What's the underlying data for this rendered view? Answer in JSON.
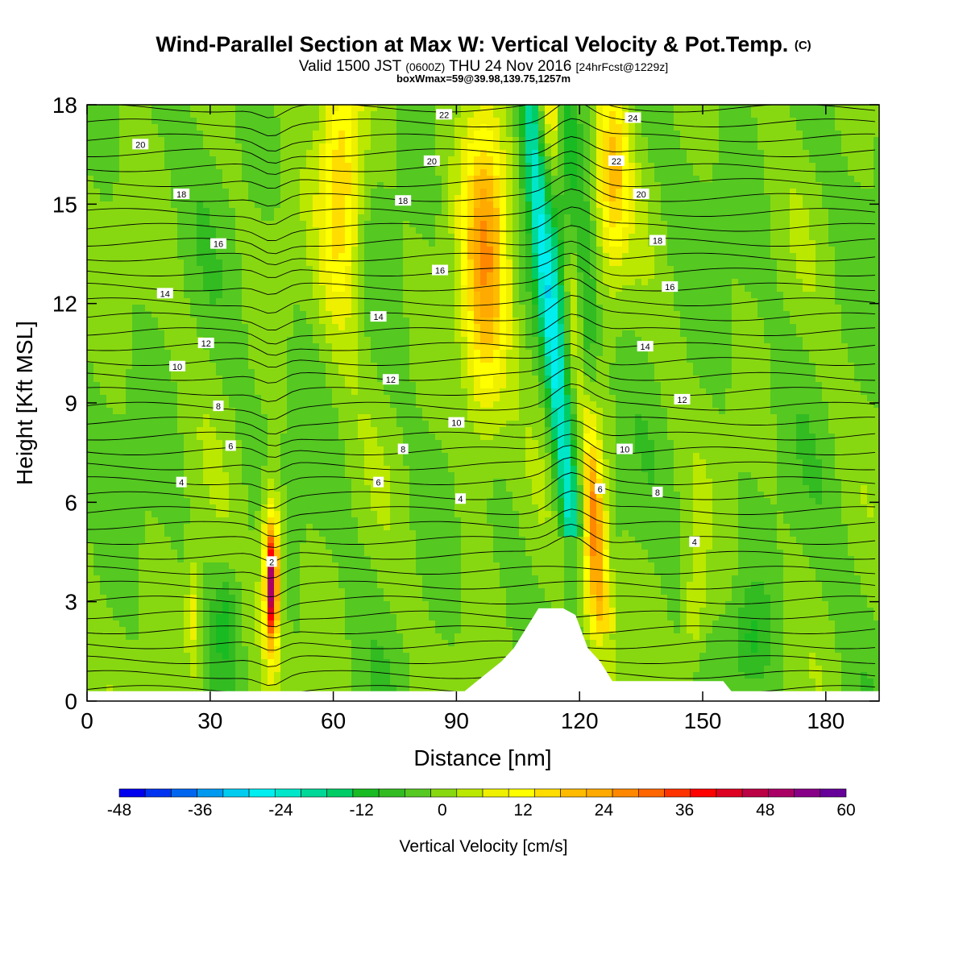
{
  "header": {
    "title": "Wind-Parallel Section at Max W: Vertical Velocity & Pot.Temp.",
    "copyright": "(C)",
    "valid_prefix": "Valid 1500 JST",
    "valid_utc": "(0600Z)",
    "valid_date": "THU 24 Nov 2016",
    "forecast": "[24hrFcst@1229z]",
    "box_max": "boxWmax=59@39.98,139.75,1257m"
  },
  "colorbar": {
    "label": "Vertical Velocity [cm/s]",
    "tick_labels": [
      "-48",
      "-36",
      "-24",
      "-12",
      "0",
      "12",
      "24",
      "36",
      "48",
      "60"
    ],
    "colors": [
      "#0000ee",
      "#0033f0",
      "#0066f0",
      "#0099f0",
      "#00ccf0",
      "#00eef0",
      "#00e6c8",
      "#00d898",
      "#00cc66",
      "#19bb22",
      "#33bb22",
      "#55c822",
      "#88d811",
      "#bbe800",
      "#eef000",
      "#ffff00",
      "#ffdd00",
      "#ffbb00",
      "#ffaa00",
      "#ff8800",
      "#ff6600",
      "#ff3300",
      "#ff0000",
      "#dd0022",
      "#bb0044",
      "#aa0066",
      "#880088",
      "#660099"
    ]
  },
  "chart_data": {
    "type": "heatmap",
    "xlabel": "Distance [nm]",
    "ylabel": "Height [Kft MSL]",
    "xlim": [
      0,
      193
    ],
    "ylim": [
      0,
      18
    ],
    "xticks": [
      0,
      30,
      60,
      90,
      120,
      150,
      180
    ],
    "yticks": [
      0,
      3,
      6,
      9,
      12,
      15,
      18
    ],
    "field": "Vertical Velocity [cm/s]",
    "contour_field": "Potential temperature [C]",
    "contour_labels": [
      {
        "text": "2",
        "x": 45,
        "y": 4.2
      },
      {
        "text": "4",
        "x": 23,
        "y": 6.6
      },
      {
        "text": "4",
        "x": 91,
        "y": 6.1
      },
      {
        "text": "4",
        "x": 148,
        "y": 4.8
      },
      {
        "text": "6",
        "x": 35,
        "y": 7.7
      },
      {
        "text": "6",
        "x": 71,
        "y": 6.6
      },
      {
        "text": "6",
        "x": 125,
        "y": 6.4
      },
      {
        "text": "8",
        "x": 32,
        "y": 8.9
      },
      {
        "text": "8",
        "x": 77,
        "y": 7.6
      },
      {
        "text": "8",
        "x": 139,
        "y": 6.3
      },
      {
        "text": "10",
        "x": 22,
        "y": 10.1
      },
      {
        "text": "10",
        "x": 90,
        "y": 8.4
      },
      {
        "text": "10",
        "x": 131,
        "y": 7.6
      },
      {
        "text": "12",
        "x": 29,
        "y": 10.8
      },
      {
        "text": "12",
        "x": 74,
        "y": 9.7
      },
      {
        "text": "12",
        "x": 145,
        "y": 9.1
      },
      {
        "text": "14",
        "x": 19,
        "y": 12.3
      },
      {
        "text": "14",
        "x": 71,
        "y": 11.6
      },
      {
        "text": "14",
        "x": 136,
        "y": 10.7
      },
      {
        "text": "16",
        "x": 32,
        "y": 13.8
      },
      {
        "text": "16",
        "x": 86,
        "y": 13.0
      },
      {
        "text": "16",
        "x": 142,
        "y": 12.5
      },
      {
        "text": "18",
        "x": 23,
        "y": 15.3
      },
      {
        "text": "18",
        "x": 77,
        "y": 15.1
      },
      {
        "text": "18",
        "x": 139,
        "y": 13.9
      },
      {
        "text": "20",
        "x": 13,
        "y": 16.8
      },
      {
        "text": "20",
        "x": 84,
        "y": 16.3
      },
      {
        "text": "20",
        "x": 135,
        "y": 15.3
      },
      {
        "text": "22",
        "x": 87,
        "y": 17.7
      },
      {
        "text": "22",
        "x": 129,
        "y": 16.3
      },
      {
        "text": "24",
        "x": 133,
        "y": 17.6
      }
    ],
    "velocity_features": [
      {
        "x": 45,
        "y": 3.5,
        "w": 1.2,
        "h": 1.6,
        "value": 60
      },
      {
        "x": 45,
        "y": 3.8,
        "w": 2.5,
        "h": 2.5,
        "value": 38
      },
      {
        "x": 97,
        "y": 13.5,
        "w": 6,
        "h": 5,
        "value": 26
      },
      {
        "x": 123,
        "y": 5,
        "w": 3,
        "h": 3.5,
        "value": 30
      },
      {
        "x": 128,
        "y": 16,
        "w": 4,
        "h": 3,
        "value": 34
      },
      {
        "x": 116,
        "y": 15,
        "w": 3,
        "h": 4,
        "value": -36
      },
      {
        "x": 121,
        "y": 10,
        "w": 3,
        "h": 4,
        "value": -28
      },
      {
        "x": 62,
        "y": 16,
        "w": 5,
        "h": 4,
        "value": 22
      },
      {
        "x": 34,
        "y": 2.5,
        "w": 3,
        "h": 1.5,
        "value": -14
      },
      {
        "x": 26,
        "y": 2.5,
        "w": 2,
        "h": 2,
        "value": 18
      },
      {
        "x": 148,
        "y": 2.5,
        "w": 3,
        "h": 2,
        "value": 14
      },
      {
        "x": 162,
        "y": 1.8,
        "w": 5,
        "h": 1.6,
        "value": -14
      }
    ],
    "terrain": [
      [
        0,
        0.3
      ],
      [
        92,
        0.3
      ],
      [
        95,
        0.6
      ],
      [
        98,
        0.9
      ],
      [
        101,
        1.2
      ],
      [
        104,
        1.6
      ],
      [
        107,
        2.2
      ],
      [
        110,
        2.8
      ],
      [
        116,
        2.8
      ],
      [
        119,
        2.6
      ],
      [
        122,
        1.6
      ],
      [
        125,
        1.2
      ],
      [
        128,
        0.6
      ],
      [
        155,
        0.6
      ],
      [
        157,
        0.3
      ],
      [
        193,
        0.3
      ]
    ]
  }
}
